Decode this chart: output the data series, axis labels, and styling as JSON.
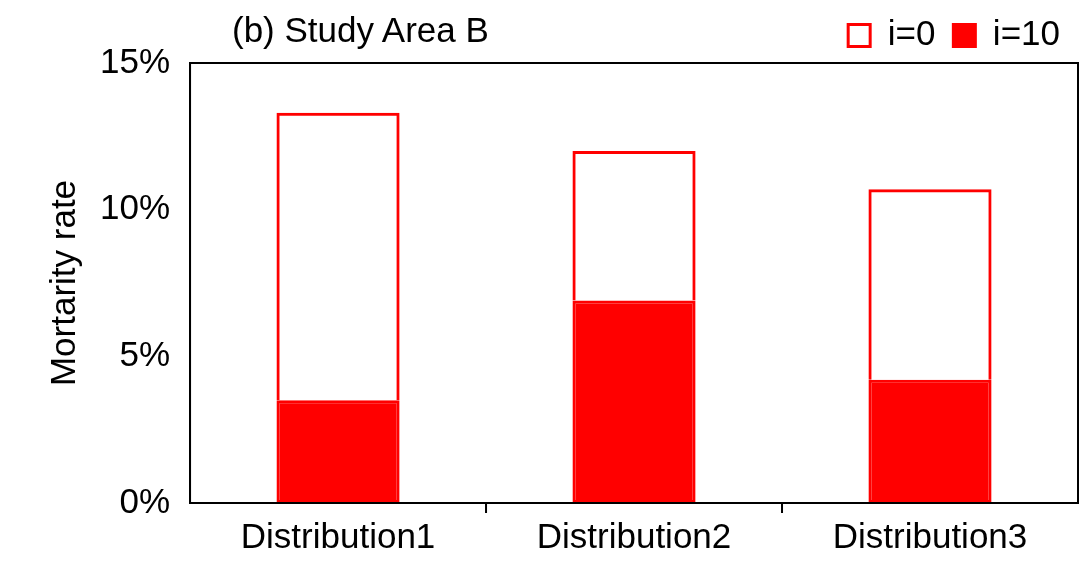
{
  "chart_data": {
    "type": "bar",
    "title": "(b) Study Area B",
    "ylabel": "Mortarity rate",
    "categories": [
      "Distribution1",
      "Distribution2",
      "Distribution3"
    ],
    "stacked": true,
    "series": [
      {
        "name": "i=10",
        "color": "#ff0000",
        "values": [
          3.5,
          6.9,
          4.2
        ]
      },
      {
        "name": "i=0",
        "color": "#ff0000",
        "values": [
          9.8,
          5.1,
          6.5
        ]
      }
    ],
    "ylim": [
      0,
      15
    ],
    "yticks": [
      {
        "value": 0,
        "label": "0%"
      },
      {
        "value": 5,
        "label": "5%"
      },
      {
        "value": 10,
        "label": "10%"
      },
      {
        "value": 15,
        "label": "15%"
      }
    ],
    "grid": false,
    "legend": "top right"
  }
}
